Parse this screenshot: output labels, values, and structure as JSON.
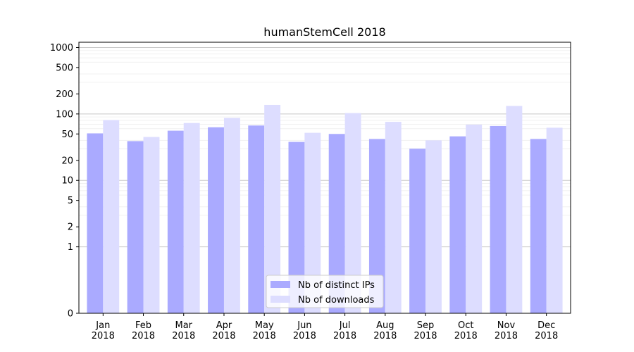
{
  "chart_data": {
    "type": "bar",
    "title": "humanStemCell 2018",
    "xlabel": "",
    "ylabel": "",
    "yscale": "symlog",
    "ylim": [
      0,
      1200
    ],
    "grid": "y (major and minor)",
    "legend_position": "bottom-center",
    "categories": [
      "Jan\n2018",
      "Feb\n2018",
      "Mar\n2018",
      "Apr\n2018",
      "May\n2018",
      "Jun\n2018",
      "Jul\n2018",
      "Aug\n2018",
      "Sep\n2018",
      "Oct\n2018",
      "Nov\n2018",
      "Dec\n2018"
    ],
    "yticks": [
      0,
      1,
      2,
      5,
      10,
      20,
      50,
      100,
      200,
      500,
      1000
    ],
    "series": [
      {
        "name": "Nb of distinct IPs",
        "color": "#aaaaff",
        "values": [
          51,
          39,
          56,
          63,
          67,
          38,
          50,
          42,
          30,
          46,
          66,
          42
        ]
      },
      {
        "name": "Nb of downloads",
        "color": "#ddddff",
        "values": [
          81,
          45,
          73,
          87,
          137,
          52,
          103,
          76,
          40,
          69,
          132,
          62
        ]
      }
    ]
  }
}
